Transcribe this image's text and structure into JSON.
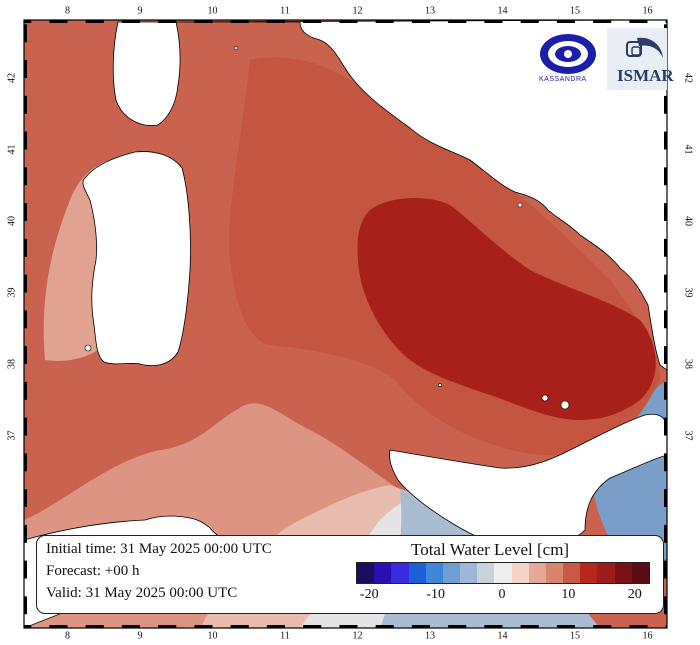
{
  "map": {
    "lon_ticks": [
      "8",
      "9",
      "10",
      "11",
      "12",
      "13",
      "14",
      "15",
      "16"
    ],
    "lat_ticks": [
      "42",
      "41",
      "40",
      "39",
      "38",
      "37"
    ]
  },
  "info": {
    "initial_time": "Initial time: 31 May 2025 00:00 UTC",
    "forecast": "Forecast: +00 h",
    "valid": "Valid: 31 May 2025 00:00 UTC"
  },
  "legend": {
    "title": "Total Water Level [cm]",
    "tick_labels": [
      "-20",
      "-10",
      "0",
      "10",
      "20"
    ],
    "colors": [
      "#1b0d5e",
      "#2a0fb0",
      "#3b2be0",
      "#1f5fd6",
      "#3f86d8",
      "#6f9fd0",
      "#9fb6d6",
      "#c9d1dc",
      "#eeeeee",
      "#f4d3c9",
      "#e4a897",
      "#d9846f",
      "#c85a45",
      "#b7281c",
      "#9c1b1b",
      "#7a1218",
      "#5a0c12"
    ]
  },
  "logos": {
    "left_name": "kassandra-logo",
    "left_text": "KASSANDRA",
    "right_name": "ismar-logo",
    "right_text": "ISMAR"
  },
  "colors": {
    "sea_level_high": "#a8201a",
    "sea_level_mid": "#c35740",
    "sea_level_low": "#d27562",
    "sea_level_pale": "#e5aa9a",
    "sea_near_zero": "#e6e4e6",
    "sea_negative": "#9eb3cd",
    "sea_blue": "#6f95c2",
    "land": "#ffffff"
  }
}
